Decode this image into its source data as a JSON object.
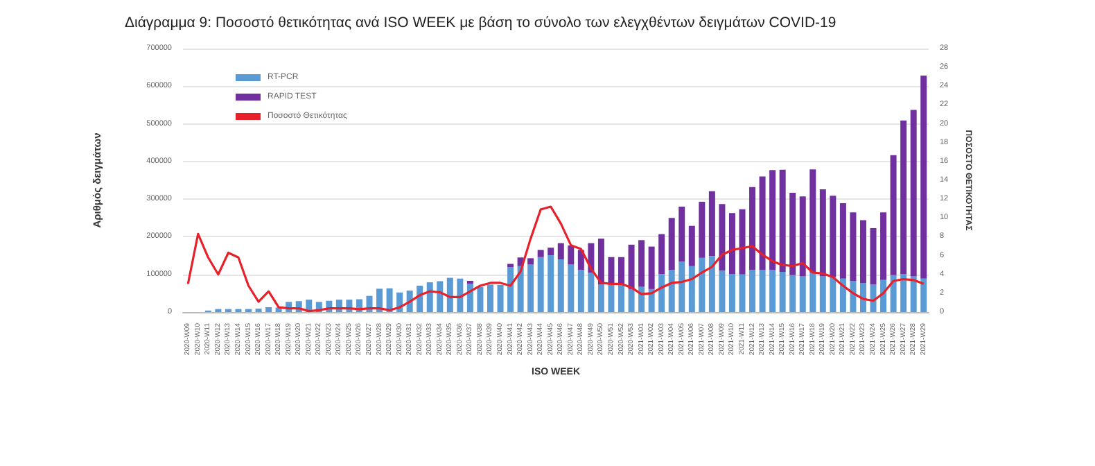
{
  "chart_data": {
    "type": "bar",
    "title": "Διάγραμμα 9: Ποσοστό θετικότητας ανά ISO WEEK με βάση το σύνολο των ελεγχθέντων δειγμάτων COVID-19",
    "xlabel": "ISO WEEK",
    "ylabel": "Αριθμός δειγμάτων",
    "y2label": "ΠΟΣΟΣΤΟ ΘΕΤΙΚΟΤΗΤΑΣ",
    "categories": [
      "2020-W09",
      "2020-W10",
      "2020-W11",
      "2020-W12",
      "2020-W13",
      "2020-W14",
      "2020-W15",
      "2020-W16",
      "2020-W17",
      "2020-W18",
      "2020-W19",
      "2020-W20",
      "2020-W21",
      "2020-W22",
      "2020-W23",
      "2020-W24",
      "2020-W25",
      "2020-W26",
      "2020-W27",
      "2020-W28",
      "2020-W29",
      "2020-W30",
      "2020-W31",
      "2020-W32",
      "2020-W33",
      "2020-W34",
      "2020-W35",
      "2020-W36",
      "2020-W37",
      "2020-W38",
      "2020-W39",
      "2020-W40",
      "2020-W41",
      "2020-W42",
      "2020-W43",
      "2020-W44",
      "2020-W45",
      "2020-W46",
      "2020-W47",
      "2020-W48",
      "2020-W49",
      "2020-W50",
      "2020-W51",
      "2020-W52",
      "2020-W53",
      "2021-W01",
      "2021-W02",
      "2021-W03",
      "2021-W04",
      "2021-W05",
      "2021-W06",
      "2021-W07",
      "2021-W08",
      "2021-W09",
      "2021-W10",
      "2021-W11",
      "2021-W12",
      "2021-W13",
      "2021-W14",
      "2021-W15",
      "2021-W16",
      "2021-W17",
      "2021-W18",
      "2021-W19",
      "2021-W20",
      "2021-W21",
      "2021-W22",
      "2021-W23",
      "2021-W24",
      "2021-W25",
      "2021-W26",
      "2021-W27",
      "2021-W28",
      "2021-W29"
    ],
    "series": [
      {
        "name": "RT-PCR",
        "color": "#5b9bd5",
        "values": [
          0,
          0,
          4000,
          8000,
          8000,
          8000,
          8000,
          9000,
          13000,
          12000,
          27000,
          29000,
          33000,
          27000,
          30000,
          33000,
          33000,
          34000,
          43000,
          62000,
          63000,
          52000,
          57000,
          70000,
          79000,
          82000,
          91000,
          89000,
          75000,
          67000,
          73000,
          72000,
          119000,
          122000,
          126000,
          146000,
          151000,
          140000,
          126000,
          112000,
          104000,
          73000,
          73000,
          71000,
          61000,
          67000,
          61000,
          101000,
          112000,
          134000,
          122000,
          144000,
          149000,
          110000,
          101000,
          100000,
          112000,
          112000,
          112000,
          107000,
          98000,
          95000,
          104000,
          95000,
          94000,
          89000,
          83000,
          77000,
          73000,
          85000,
          98000,
          101000,
          95000,
          89000
        ]
      },
      {
        "name": "RAPID TEST",
        "color": "#7030a0",
        "values": [
          0,
          0,
          0,
          0,
          0,
          0,
          0,
          0,
          0,
          0,
          0,
          0,
          0,
          0,
          0,
          0,
          0,
          0,
          0,
          0,
          0,
          0,
          0,
          0,
          0,
          0,
          0,
          0,
          8000,
          0,
          0,
          null,
          9000,
          23000,
          17000,
          19000,
          20000,
          43000,
          51000,
          53000,
          79000,
          122000,
          73000,
          75000,
          118000,
          124000,
          113000,
          106000,
          138000,
          146000,
          107000,
          149000,
          172000,
          177000,
          162000,
          173000,
          220000,
          248000,
          265000,
          271000,
          219000,
          212000,
          275000,
          231000,
          215000,
          200000,
          182000,
          167000,
          150000,
          180000,
          319000,
          408000,
          442000,
          539000
        ]
      },
      {
        "name": "Ποσοστό Θετικότητας",
        "type": "line",
        "axis": "y2",
        "color": "#e8202a",
        "values": [
          3.0,
          8.3,
          5.8,
          4.0,
          6.3,
          5.8,
          2.8,
          1.1,
          2.2,
          0.5,
          0.4,
          0.4,
          0.1,
          0.2,
          0.4,
          0.4,
          0.4,
          0.3,
          0.4,
          0.4,
          0.2,
          0.5,
          1.1,
          1.8,
          2.2,
          2.1,
          1.6,
          1.6,
          2.2,
          2.8,
          3.1,
          3.1,
          2.8,
          4.3,
          7.8,
          10.9,
          11.2,
          9.4,
          7.1,
          6.7,
          4.6,
          3.1,
          3.0,
          3.0,
          2.6,
          1.9,
          2.0,
          2.6,
          3.1,
          3.2,
          3.5,
          4.2,
          4.8,
          6.1,
          6.6,
          6.8,
          7.0,
          6.1,
          5.4,
          5.0,
          4.9,
          5.2,
          4.2,
          4.1,
          3.7,
          2.8,
          2.0,
          1.4,
          1.2,
          2.0,
          3.3,
          3.5,
          3.4,
          3.0
        ]
      }
    ],
    "stacked": true,
    "ylim": [
      0,
      700000
    ],
    "yticks": [
      0,
      100000,
      200000,
      300000,
      400000,
      500000,
      600000,
      700000
    ],
    "y2lim": [
      0,
      28
    ],
    "y2ticks": [
      0,
      2,
      4,
      6,
      8,
      10,
      12,
      14,
      16,
      18,
      20,
      22,
      24,
      26,
      28
    ],
    "grid": "y",
    "legend": "top left",
    "marker": "none",
    "line_style": "solid"
  }
}
